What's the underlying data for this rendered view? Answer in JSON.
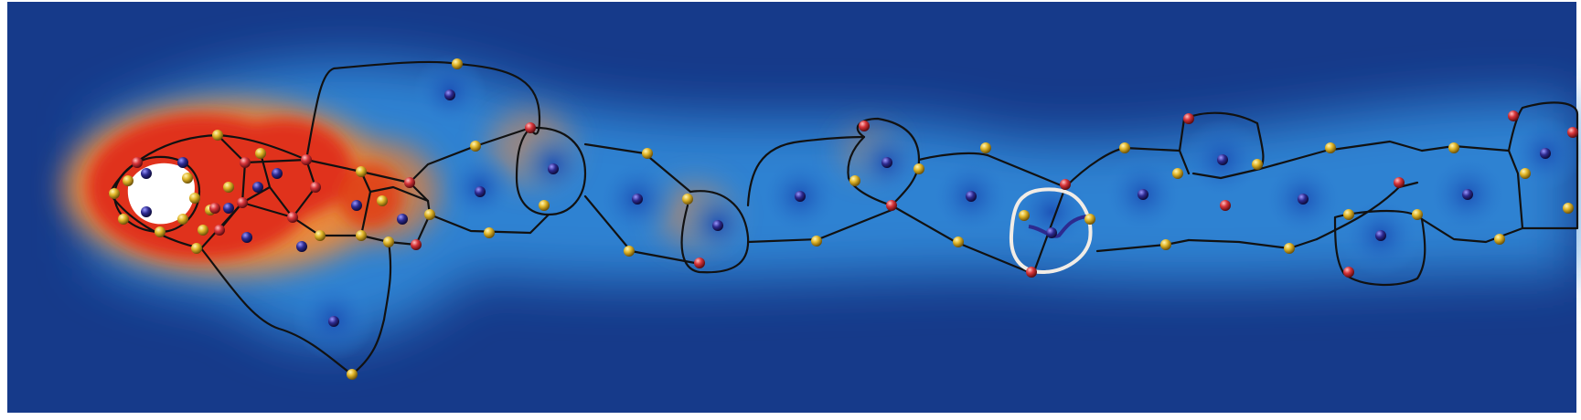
{
  "figure": {
    "description_free": true,
    "colormap": {
      "low": "#1a3a8a",
      "mid": "#2f86d6",
      "high": "#e0301a",
      "hole": "#ffffff"
    },
    "cell_edge_color": "#111111",
    "highlight_cell_color": "#f1ece6",
    "node_colors": {
      "center": "#2d2a8f",
      "vertex_yellow": "#e2b72a",
      "vertex_red": "#d8353a"
    }
  }
}
